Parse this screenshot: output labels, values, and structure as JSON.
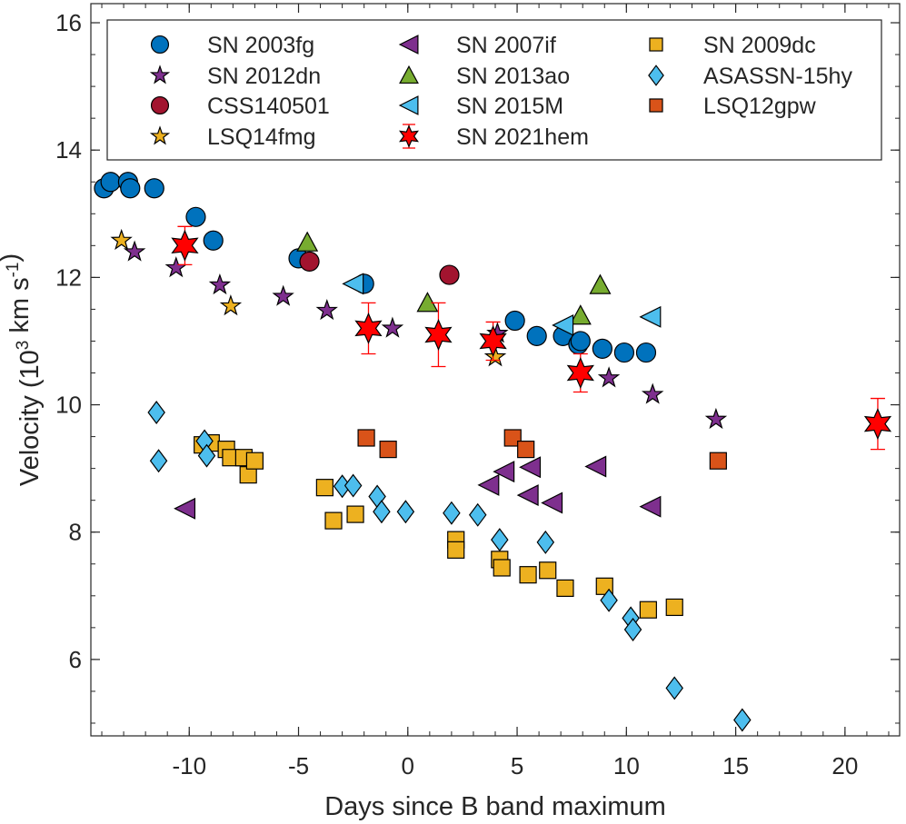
{
  "chart_data": {
    "type": "scatter",
    "title": "",
    "xlabel": "Days since B band maximum",
    "ylabel": "Velocity (10",
    "ylabel_sup1": "3",
    "ylabel_mid": " km s",
    "ylabel_sup2": "-1",
    "ylabel_end": ")",
    "xlim": [
      -14.5,
      22.5
    ],
    "ylim": [
      4.8,
      16.3
    ],
    "xticks": [
      -10,
      -5,
      0,
      5,
      10,
      15,
      20
    ],
    "xtick_labels": [
      "-10",
      "-5",
      "0",
      "5",
      "10",
      "15",
      "20"
    ],
    "yticks": [
      6,
      8,
      10,
      12,
      14,
      16
    ],
    "ytick_labels": [
      "6",
      "8",
      "10",
      "12",
      "14",
      "16"
    ],
    "grid": false,
    "legend_position": "top",
    "series": [
      {
        "name": "SN 2003fg",
        "marker": "circle",
        "color": "#0072BD",
        "points": [
          [
            -13.9,
            13.4
          ],
          [
            -13.6,
            13.5
          ],
          [
            -12.8,
            13.5
          ],
          [
            -12.7,
            13.4
          ],
          [
            -11.6,
            13.4
          ],
          [
            -9.7,
            12.95
          ],
          [
            -8.9,
            12.58
          ],
          [
            -5,
            12.3
          ],
          [
            -2,
            11.9
          ],
          [
            4.9,
            11.32
          ],
          [
            5.9,
            11.08
          ],
          [
            7.1,
            11.08
          ],
          [
            7.8,
            10.95
          ],
          [
            7.9,
            11.0
          ],
          [
            8.9,
            10.88
          ],
          [
            9.9,
            10.82
          ],
          [
            10.9,
            10.82
          ]
        ]
      },
      {
        "name": "SN 2012dn",
        "marker": "star5",
        "color": "#7E2F8E",
        "points": [
          [
            -12.5,
            12.4
          ],
          [
            -10.6,
            12.15
          ],
          [
            -8.6,
            11.88
          ],
          [
            -5.7,
            11.7
          ],
          [
            -3.7,
            11.48
          ],
          [
            -0.7,
            11.2
          ],
          [
            4.1,
            11.12
          ],
          [
            9.2,
            10.42
          ],
          [
            11.2,
            10.16
          ],
          [
            14.1,
            9.77
          ]
        ]
      },
      {
        "name": "CSS140501",
        "marker": "circle",
        "color": "#A2142F",
        "points": [
          [
            -4.5,
            12.25
          ],
          [
            1.9,
            12.04
          ]
        ]
      },
      {
        "name": "LSQ14fmg",
        "marker": "star5",
        "color": "#EDB120",
        "points": [
          [
            -13.1,
            12.58
          ],
          [
            -8.1,
            11.55
          ],
          [
            4,
            10.75
          ]
        ]
      },
      {
        "name": "SN 2007if",
        "marker": "triangle-left",
        "color": "#7E2F8E",
        "points": [
          [
            -10.2,
            8.37
          ],
          [
            3.7,
            8.74
          ],
          [
            4.4,
            8.95
          ],
          [
            5.5,
            8.58
          ],
          [
            5.6,
            9.02
          ],
          [
            6.6,
            8.46
          ],
          [
            8.6,
            9.03
          ],
          [
            11.1,
            8.4
          ]
        ]
      },
      {
        "name": "SN 2013ao",
        "marker": "triangle-up",
        "color": "#77AC30",
        "points": [
          [
            -4.6,
            12.55
          ],
          [
            0.9,
            11.6
          ],
          [
            7.9,
            11.4
          ],
          [
            8.8,
            11.88
          ]
        ]
      },
      {
        "name": "SN 2015M",
        "marker": "triangle-left",
        "color": "#4DBEEE",
        "points": [
          [
            -2.5,
            11.9
          ],
          [
            7.1,
            11.25
          ],
          [
            11.1,
            11.38
          ]
        ]
      },
      {
        "name": "SN 2021hem",
        "marker": "star6",
        "color": "#FF0000",
        "errorbars": true,
        "points": [
          [
            -10.2,
            12.5,
            0.3
          ],
          [
            -1.8,
            11.2,
            0.4
          ],
          [
            1.4,
            11.1,
            0.5
          ],
          [
            3.9,
            11.0,
            0.3
          ],
          [
            7.9,
            10.5,
            0.3
          ],
          [
            21.5,
            9.7,
            0.4
          ]
        ]
      },
      {
        "name": "SN 2009dc",
        "marker": "square",
        "color": "#EDB120",
        "points": [
          [
            -9.4,
            9.37
          ],
          [
            -9,
            9.4
          ],
          [
            -8.3,
            9.3
          ],
          [
            -8.1,
            9.17
          ],
          [
            -7.5,
            9.17
          ],
          [
            -7.3,
            8.9
          ],
          [
            -7,
            9.12
          ],
          [
            -3.8,
            8.7
          ],
          [
            -3.4,
            8.18
          ],
          [
            -2.4,
            8.28
          ],
          [
            2.2,
            7.88
          ],
          [
            2.2,
            7.72
          ],
          [
            4.2,
            7.57
          ],
          [
            4.3,
            7.44
          ],
          [
            5.5,
            7.33
          ],
          [
            6.4,
            7.4
          ],
          [
            7.2,
            7.12
          ],
          [
            9,
            7.15
          ],
          [
            11,
            6.78
          ],
          [
            12.2,
            6.82
          ]
        ]
      },
      {
        "name": "ASASSN-15hy",
        "marker": "diamond",
        "color": "#4DBEEE",
        "points": [
          [
            -11.5,
            9.88
          ],
          [
            -11.4,
            9.12
          ],
          [
            -9.3,
            9.43
          ],
          [
            -9.2,
            9.2
          ],
          [
            -3,
            8.72
          ],
          [
            -2.5,
            8.73
          ],
          [
            -1.4,
            8.56
          ],
          [
            -1.2,
            8.32
          ],
          [
            -0.1,
            8.32
          ],
          [
            2,
            8.3
          ],
          [
            3.2,
            8.27
          ],
          [
            4.2,
            7.88
          ],
          [
            6.3,
            7.84
          ],
          [
            9.2,
            6.93
          ],
          [
            10.2,
            6.65
          ],
          [
            10.3,
            6.47
          ],
          [
            12.2,
            5.55
          ],
          [
            15.3,
            5.05
          ]
        ]
      },
      {
        "name": "LSQ12gpw",
        "marker": "square",
        "color": "#D95319",
        "points": [
          [
            -1.9,
            9.48
          ],
          [
            -0.9,
            9.3
          ],
          [
            4.8,
            9.48
          ],
          [
            5.4,
            9.3
          ],
          [
            14.2,
            9.12
          ]
        ]
      }
    ]
  }
}
